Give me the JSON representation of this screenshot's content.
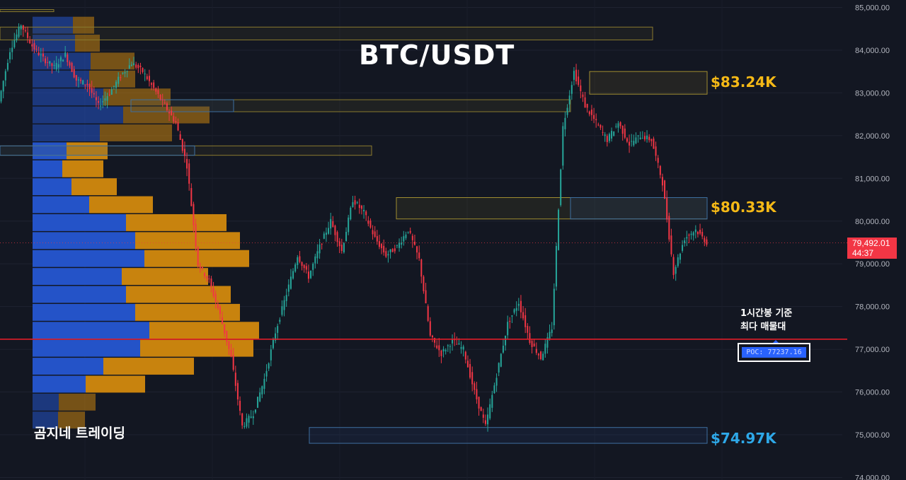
{
  "title": "BTC/USDT",
  "brand": "곰지네 트레이딩",
  "annotation": {
    "line1": "1시간봉 기준",
    "line2": "최다 매물대",
    "poc_label": "POC: 77237.16"
  },
  "current_price": {
    "value": "79,492.01",
    "countdown": "44:37"
  },
  "levels": [
    {
      "label": "$83.24K",
      "price": 83240,
      "color": "#f5b916"
    },
    {
      "label": "$80.33K",
      "price": 80330,
      "color": "#f5b916"
    },
    {
      "label": "$74.97K",
      "price": 74970,
      "color": "#2ea8e8"
    }
  ],
  "colors": {
    "up": "#26a69a",
    "down": "#f23645",
    "poc_line": "#e01d28",
    "vp_buy": "#2453c8",
    "vp_sell": "#c8830e"
  },
  "chart_data": {
    "type": "candlestick",
    "title": "BTC/USDT",
    "ylim": [
      74000,
      85000
    ],
    "y_ticks": [
      "74,000.00",
      "75,000.00",
      "76,000.00",
      "77,000.00",
      "78,000.00",
      "79,000.00",
      "80,000.00",
      "81,000.00",
      "82,000.00",
      "83,000.00",
      "84,000.00",
      "85,000.00"
    ],
    "y_tick_values": [
      74000,
      75000,
      76000,
      77000,
      78000,
      79000,
      80000,
      81000,
      82000,
      83000,
      84000,
      85000
    ],
    "poc": 77237.16,
    "last_price": 79492.01,
    "close_path": [
      82800,
      84000,
      84600,
      84100,
      83800,
      83600,
      83900,
      83300,
      83200,
      82700,
      83000,
      83400,
      83700,
      83500,
      83100,
      82700,
      82300,
      81300,
      79000,
      78600,
      77800,
      76800,
      75200,
      75500,
      76300,
      77400,
      78300,
      79200,
      78700,
      79400,
      80000,
      79300,
      80500,
      80200,
      79600,
      79200,
      79400,
      79800,
      79100,
      77300,
      76900,
      77200,
      77000,
      76000,
      75200,
      76400,
      77600,
      78100,
      77200,
      76800,
      77500,
      82200,
      83500,
      82700,
      82300,
      81900,
      82300,
      81800,
      82000,
      81900,
      80900,
      78800,
      79600,
      79800,
      79500
    ],
    "volume_profile": {
      "price_rows": [
        84580,
        84160,
        83740,
        83320,
        82900,
        82480,
        82060,
        81640,
        81220,
        80800,
        80380,
        79960,
        79540,
        79120,
        78700,
        78280,
        77860,
        77440,
        77020,
        76600,
        76180,
        75760,
        75340
      ],
      "buy": [
        57,
        60,
        82,
        80,
        100,
        128,
        95,
        48,
        42,
        55,
        80,
        132,
        145,
        158,
        126,
        132,
        145,
        165,
        152,
        100,
        75,
        37,
        36
      ],
      "sell": [
        30,
        35,
        62,
        65,
        95,
        122,
        102,
        58,
        58,
        64,
        90,
        142,
        148,
        148,
        122,
        148,
        148,
        155,
        160,
        128,
        84,
        52,
        38
      ]
    }
  }
}
